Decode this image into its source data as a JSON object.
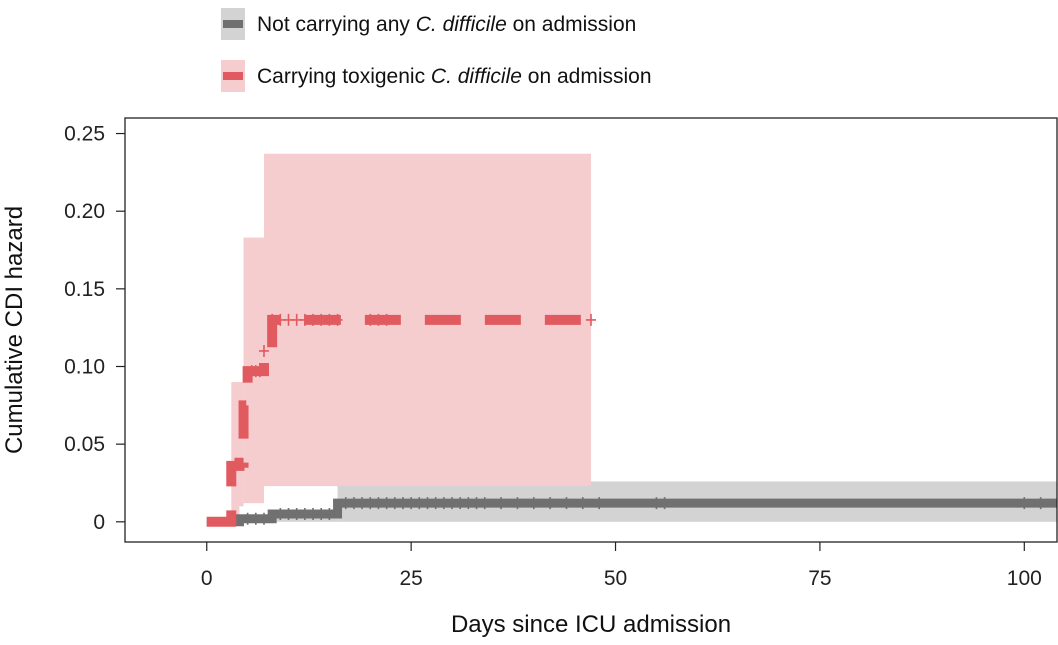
{
  "chart_data": {
    "type": "line",
    "subtype": "step-cumulative-hazard",
    "xlabel": "Days since ICU admission",
    "ylabel": "Cumulative CDI hazard",
    "xlim": [
      -10,
      104
    ],
    "ylim": [
      -0.013,
      0.26
    ],
    "x_ticks": [
      0,
      25,
      50,
      75,
      100
    ],
    "x_tick_labels": [
      "0",
      "25",
      "50",
      "75",
      "100"
    ],
    "y_ticks": [
      0,
      0.05,
      0.1,
      0.15,
      0.2,
      0.25
    ],
    "y_tick_labels": [
      "0",
      "0.05",
      "0.10",
      "0.15",
      "0.20",
      "0.25"
    ],
    "legend_position": "top-left",
    "series": [
      {
        "name": "Not carrying any C. difficile on admission",
        "legend_parts": {
          "before": "Not carrying any ",
          "italic": "C. difficile",
          "after": " on admission"
        },
        "color": "#707070",
        "band_color": "#d3d3d3",
        "line_style": "solid",
        "steps": [
          [
            0,
            0
          ],
          [
            4,
            0.002
          ],
          [
            8,
            0.005
          ],
          [
            16,
            0.012
          ],
          [
            104,
            0.012
          ]
        ],
        "ci_steps": [
          [
            0,
            0,
            0
          ],
          [
            4,
            0,
            0.003
          ],
          [
            8,
            0,
            0.007
          ],
          [
            16,
            0,
            0.026
          ],
          [
            104,
            0,
            0.026
          ]
        ],
        "censor_x": [
          5,
          6,
          7,
          9,
          10,
          11,
          12,
          13,
          14,
          15,
          17,
          18,
          19,
          20,
          21,
          22,
          23,
          24,
          25,
          26,
          27,
          28,
          29,
          30,
          31,
          32,
          33,
          34,
          36,
          38,
          40,
          42,
          44,
          46,
          48,
          55,
          56,
          100,
          102
        ]
      },
      {
        "name": "Carrying toxigenic C. difficile on admission",
        "legend_parts": {
          "before": "Carrying toxigenic ",
          "italic": "C. difficile",
          "after": " on admission"
        },
        "color": "#e05a5f",
        "band_color": "#f5cdcf",
        "line_style": "dashed",
        "steps": [
          [
            0,
            0
          ],
          [
            3,
            0.036
          ],
          [
            4,
            0.038
          ],
          [
            4.5,
            0.075
          ],
          [
            5,
            0.097
          ],
          [
            7,
            0.11
          ],
          [
            8,
            0.13
          ],
          [
            47,
            0.13
          ]
        ],
        "ci_steps": [
          [
            3,
            0,
            0.09
          ],
          [
            4,
            0.01,
            0.09
          ],
          [
            4.5,
            0.012,
            0.183
          ],
          [
            7,
            0.023,
            0.237
          ],
          [
            47,
            0.023,
            0.237
          ]
        ],
        "censor_x": [
          5.5,
          6,
          6.5,
          7,
          8,
          9,
          10,
          11,
          12,
          13,
          14,
          15,
          16,
          20,
          21,
          22,
          47
        ]
      }
    ]
  }
}
